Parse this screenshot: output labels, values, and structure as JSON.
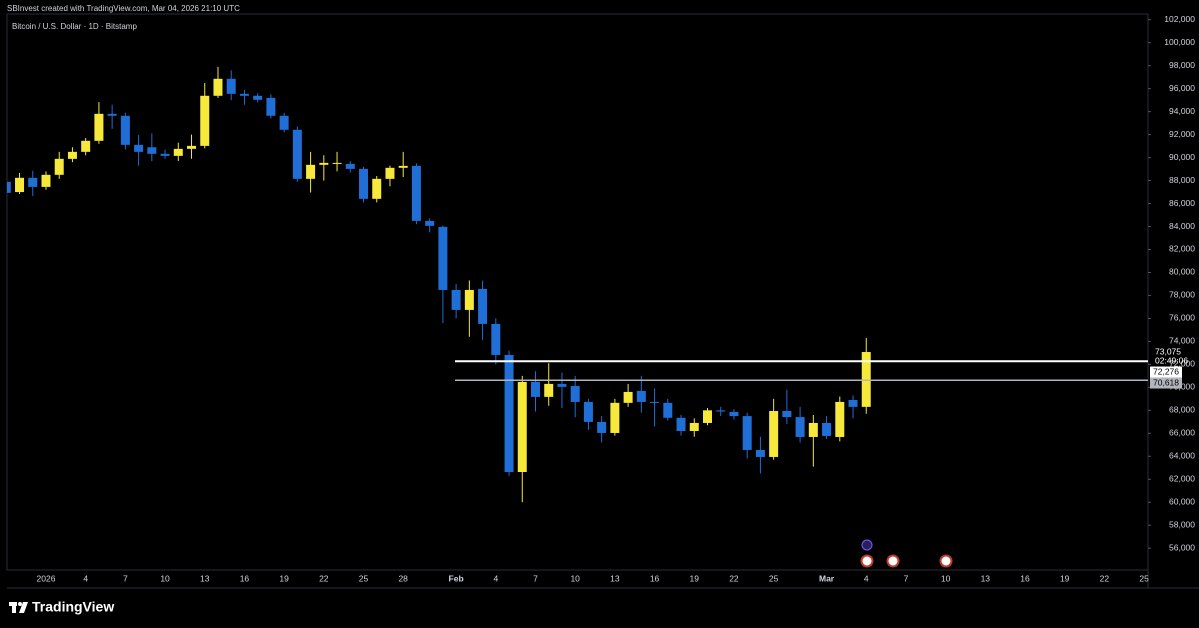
{
  "header": "SBInvest created with TradingView.com, Mar 04, 2026 21:10 UTC",
  "brand": "TradingView",
  "chart_data": {
    "type": "candlestick",
    "title": "Bitcoin / U.S. Dollar · 1D · Bitstamp",
    "categories": [
      null,
      null,
      null,
      "2026",
      null,
      null,
      "4",
      null,
      null,
      "7",
      null,
      null,
      "10",
      null,
      null,
      "13",
      null,
      null,
      "16",
      null,
      null,
      "19",
      null,
      null,
      "22",
      null,
      null,
      "25",
      null,
      null,
      "28",
      null,
      null,
      null,
      "Feb",
      null,
      null,
      "4",
      null,
      null,
      "7",
      null,
      null,
      "10",
      null,
      null,
      "13",
      null,
      null,
      "16",
      null,
      null,
      "19",
      null,
      null,
      "22",
      null,
      null,
      "25",
      null,
      null,
      null,
      "Mar",
      null,
      null,
      "4",
      null,
      null,
      "7",
      null,
      null,
      "10",
      null,
      null,
      "13",
      null,
      null,
      "16",
      null,
      null,
      "19",
      null,
      null,
      "22",
      null,
      null,
      "25"
    ],
    "open": [
      87890,
      87000,
      88240,
      87450,
      88500,
      89890,
      90500,
      91460,
      93810,
      93640,
      91110,
      90900,
      90330,
      90150,
      90760,
      91020,
      95380,
      96860,
      95550,
      95380,
      95200,
      93640,
      92420,
      88150,
      89370,
      89450,
      89450,
      89020,
      86410,
      88150,
      89110,
      89280,
      84490,
      83970,
      78480,
      76740,
      78570,
      75520,
      72820,
      62630,
      70470,
      69170,
      70300,
      70120,
      68730,
      66990,
      66030,
      68650,
      69690,
      68730,
      68650,
      67350,
      66200,
      66900,
      68000,
      67860,
      67500,
      64550,
      63940,
      67940,
      67410,
      65680,
      66900,
      65680,
      68900,
      68300,
      null,
      null,
      null,
      null,
      null,
      null,
      null,
      null,
      null,
      null,
      null,
      null,
      null,
      null,
      null,
      null,
      null,
      null,
      null,
      null,
      null
    ],
    "high": [
      90240,
      88670,
      88850,
      88800,
      90500,
      90900,
      91700,
      94830,
      94600,
      93900,
      91980,
      92100,
      90700,
      91300,
      92000,
      96490,
      97900,
      97600,
      95900,
      95600,
      95500,
      93900,
      92700,
      90500,
      90200,
      90500,
      89700,
      89200,
      88400,
      89300,
      90500,
      89500,
      84700,
      84100,
      79000,
      79300,
      79300,
      76000,
      73200,
      71000,
      71400,
      72100,
      71300,
      71000,
      69000,
      67500,
      69000,
      70300,
      71000,
      69900,
      69000,
      67600,
      67300,
      68200,
      68300,
      68100,
      67800,
      65700,
      69000,
      69800,
      68300,
      67600,
      67500,
      69200,
      69300,
      74300,
      null,
      null,
      null,
      null,
      null,
      null,
      null,
      null,
      null,
      null,
      null,
      null,
      null,
      null,
      null,
      null,
      null,
      null,
      null,
      null,
      null
    ],
    "low": [
      86750,
      86840,
      86660,
      87200,
      88150,
      89600,
      90200,
      91200,
      92500,
      90700,
      89300,
      89700,
      89900,
      89700,
      89900,
      90800,
      95200,
      95000,
      94600,
      94800,
      93400,
      92200,
      87900,
      86960,
      88000,
      88800,
      88700,
      86100,
      86100,
      87500,
      88300,
      84200,
      83500,
      75600,
      76000,
      74400,
      74130,
      72000,
      62300,
      60000,
      67900,
      68400,
      68200,
      67400,
      66300,
      65200,
      65800,
      68300,
      67800,
      66600,
      67100,
      65800,
      65700,
      66700,
      67500,
      67200,
      63800,
      62500,
      63700,
      66800,
      65200,
      63100,
      65500,
      65300,
      67300,
      67700,
      null,
      null,
      null,
      null,
      null,
      null,
      null,
      null,
      null,
      null,
      null,
      null,
      null,
      null,
      null,
      null,
      null,
      null,
      null,
      null,
      null
    ],
    "close": [
      86930,
      88240,
      87450,
      88500,
      89890,
      90500,
      91460,
      93810,
      93640,
      91110,
      90500,
      90330,
      90150,
      90760,
      91020,
      95380,
      96860,
      95550,
      95380,
      95030,
      93640,
      92420,
      88150,
      89370,
      89540,
      89540,
      89020,
      86410,
      88150,
      89110,
      89280,
      84490,
      84060,
      78480,
      76740,
      78480,
      75520,
      72820,
      62630,
      70470,
      69170,
      70300,
      70040,
      68730,
      66990,
      66030,
      68650,
      69600,
      68730,
      68650,
      67350,
      66200,
      66900,
      68000,
      67900,
      67500,
      64550,
      63940,
      67940,
      67410,
      65680,
      66900,
      65770,
      68730,
      68300,
      73075,
      null,
      null,
      null,
      null,
      null,
      null,
      null,
      null,
      null,
      null,
      null,
      null,
      null,
      null,
      null,
      null,
      null,
      null,
      null,
      null,
      null
    ],
    "up_color": "#f7e83c",
    "down_color": "#1f6fd6",
    "ylim": [
      54100,
      102500
    ],
    "yticks": [
      {
        "value": 56000,
        "label": "56,000"
      },
      {
        "value": 58000,
        "label": "58,000"
      },
      {
        "value": 60000,
        "label": "60,000"
      },
      {
        "value": 62000,
        "label": "62,000"
      },
      {
        "value": 64000,
        "label": "64,000"
      },
      {
        "value": 66000,
        "label": "66,000"
      },
      {
        "value": 68000,
        "label": "68,000"
      },
      {
        "value": 70000,
        "label": "70,000"
      },
      {
        "value": 72000,
        "label": "72,000"
      },
      {
        "value": 74000,
        "label": "74,000"
      },
      {
        "value": 76000,
        "label": "76,000"
      },
      {
        "value": 78000,
        "label": "78,000"
      },
      {
        "value": 80000,
        "label": "80,000"
      },
      {
        "value": 82000,
        "label": "82,000"
      },
      {
        "value": 84000,
        "label": "84,000"
      },
      {
        "value": 86000,
        "label": "86,000"
      },
      {
        "value": 88000,
        "label": "88,000"
      },
      {
        "value": 90000,
        "label": "90,000"
      },
      {
        "value": 92000,
        "label": "92,000"
      },
      {
        "value": 94000,
        "label": "94,000"
      },
      {
        "value": 96000,
        "label": "96,000"
      },
      {
        "value": 98000,
        "label": "98,000"
      },
      {
        "value": 100000,
        "label": "100,000"
      },
      {
        "value": 102000,
        "label": "102,000"
      }
    ],
    "last_price": {
      "value": 73075,
      "label": "73,075"
    },
    "countdown": "02:49:06",
    "levels": [
      {
        "value": 72276,
        "label": "72,276",
        "color": "#ffffff"
      },
      {
        "value": 70618,
        "label": "70,618",
        "color": "#b2b5be"
      }
    ]
  }
}
